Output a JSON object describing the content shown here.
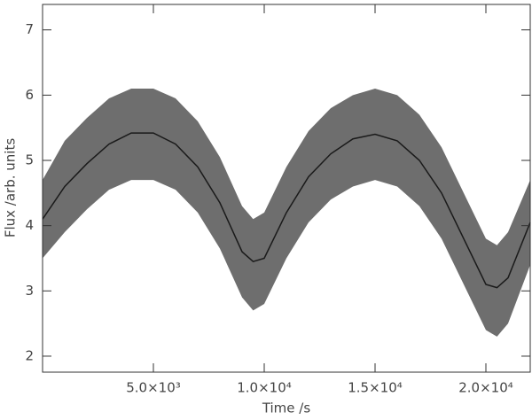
{
  "chart_data": {
    "type": "line",
    "x": [
      0,
      1000,
      2000,
      3000,
      4000,
      5000,
      6000,
      7000,
      8000,
      9000,
      9500,
      10000,
      11000,
      12000,
      13000,
      14000,
      15000,
      16000,
      17000,
      18000,
      19000,
      20000,
      20500,
      21000,
      22000
    ],
    "series": [
      {
        "color": "#1a1a1a",
        "values": [
          4.1,
          4.6,
          4.95,
          5.25,
          5.42,
          5.42,
          5.25,
          4.9,
          4.35,
          3.6,
          3.45,
          3.5,
          4.2,
          4.75,
          5.1,
          5.33,
          5.4,
          5.3,
          5.0,
          4.5,
          3.8,
          3.1,
          3.05,
          3.2,
          4.05
        ]
      }
    ],
    "band": {
      "color": "#5e5e5e",
      "upper": [
        4.7,
        5.3,
        5.65,
        5.95,
        6.1,
        6.1,
        5.95,
        5.6,
        5.05,
        4.3,
        4.1,
        4.2,
        4.9,
        5.45,
        5.8,
        6.0,
        6.1,
        6.0,
        5.7,
        5.2,
        4.5,
        3.8,
        3.7,
        3.9,
        4.7
      ],
      "lower": [
        3.5,
        3.9,
        4.25,
        4.55,
        4.7,
        4.7,
        4.55,
        4.2,
        3.65,
        2.9,
        2.7,
        2.8,
        3.5,
        4.05,
        4.4,
        4.6,
        4.7,
        4.6,
        4.3,
        3.8,
        3.1,
        2.4,
        2.3,
        2.5,
        3.4
      ]
    },
    "xlim": [
      0,
      22000
    ],
    "ylim": [
      1.755,
      7.39
    ],
    "xticks": [
      {
        "value": 5000,
        "label": "5.0×10³"
      },
      {
        "value": 10000,
        "label": "1.0×10⁴"
      },
      {
        "value": 15000,
        "label": "1.5×10⁴"
      },
      {
        "value": 20000,
        "label": "2.0×10⁴"
      }
    ],
    "yticks": [
      2,
      3,
      4,
      5,
      6,
      7
    ],
    "xlabel": "Time /s",
    "ylabel": "Flux /arb. units",
    "grid": false
  }
}
